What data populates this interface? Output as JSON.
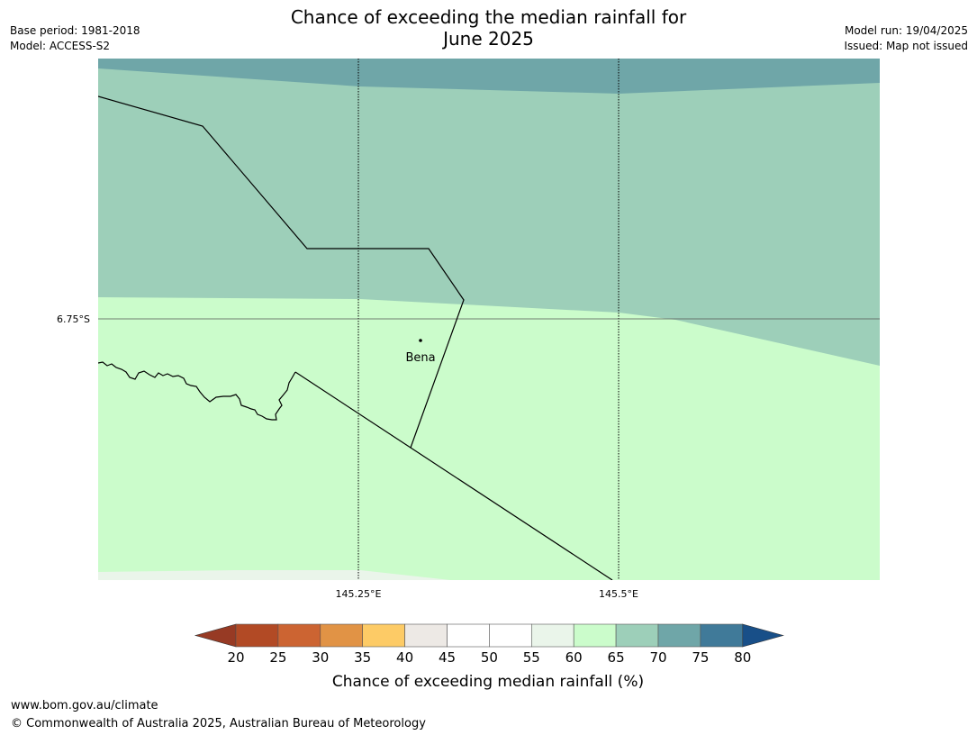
{
  "title_line1": "Chance of exceeding the median rainfall for",
  "title_line2": "June 2025",
  "meta_left": {
    "base_period": "Base period: 1981-2018",
    "model": "Model: ACCESS-S2"
  },
  "meta_right": {
    "model_run": "Model run: 19/04/2025",
    "issued": "Issued: Map not issued"
  },
  "map": {
    "lat_label": "6.75°S",
    "lon_labels": [
      "145.25°E",
      "145.5°E"
    ],
    "place_label": "Bena",
    "colors": {
      "band_70_75": "#6fa6a8",
      "band_65_70": "#9dcfb9",
      "band_60_65": "#cbfccb",
      "band_55_60": "#eaf5ea",
      "grid": "#000000",
      "boundary": "#000000"
    }
  },
  "colorbar": {
    "ticks": [
      "20",
      "25",
      "30",
      "35",
      "40",
      "45",
      "50",
      "55",
      "60",
      "65",
      "70",
      "75",
      "80"
    ],
    "colors": [
      "#b24a25",
      "#cc6432",
      "#e19345",
      "#fdcb66",
      "#ede9e5",
      "#ffffff",
      "#ffffff",
      "#eaf5ea",
      "#cbfccb",
      "#9dcfb9",
      "#6fa6a8",
      "#407a99"
    ],
    "low_extend_color": "#973a24",
    "high_extend_color": "#184f88",
    "label": "Chance of exceeding median rainfall (%)"
  },
  "footer": {
    "url": "www.bom.gov.au/climate",
    "copyright": "© Commonwealth of Australia 2025, Australian Bureau of Meteorology"
  }
}
